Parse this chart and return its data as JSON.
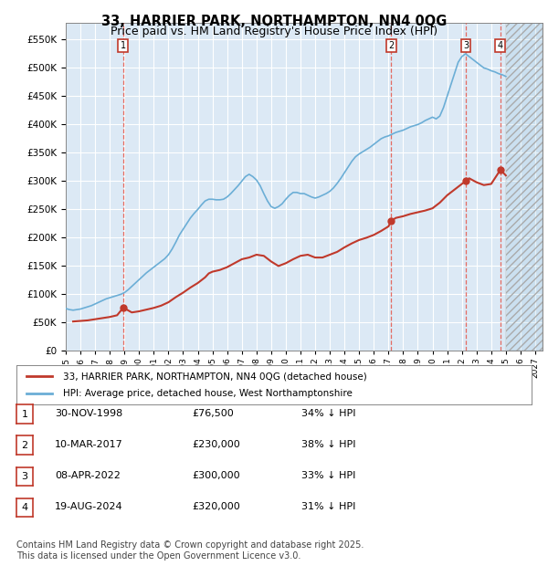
{
  "title": "33, HARRIER PARK, NORTHAMPTON, NN4 0QG",
  "subtitle": "Price paid vs. HM Land Registry's House Price Index (HPI)",
  "title_fontsize": 11,
  "subtitle_fontsize": 9.5,
  "ylim": [
    0,
    580000
  ],
  "yticks": [
    0,
    50000,
    100000,
    150000,
    200000,
    250000,
    300000,
    350000,
    400000,
    450000,
    500000,
    550000
  ],
  "ytick_labels": [
    "£0",
    "£50K",
    "£100K",
    "£150K",
    "£200K",
    "£250K",
    "£300K",
    "£350K",
    "£400K",
    "£450K",
    "£500K",
    "£550K"
  ],
  "xlim_start": 1995.0,
  "xlim_end": 2027.5,
  "background_color": "#dce9f5",
  "plot_bg_color": "#dce9f5",
  "grid_color": "#ffffff",
  "hpi_line_color": "#6baed6",
  "price_line_color": "#c0392b",
  "transaction_marker_color": "#c0392b",
  "vertical_line_color": "#e74c3c",
  "transactions": [
    {
      "num": 1,
      "date": "30-NOV-1998",
      "year": 1998.92,
      "price": 76500,
      "label": "30-NOV-1998",
      "price_str": "£76,500",
      "pct": "34% ↓ HPI"
    },
    {
      "num": 2,
      "date": "10-MAR-2017",
      "year": 2017.19,
      "price": 230000,
      "label": "10-MAR-2017",
      "price_str": "£230,000",
      "pct": "38% ↓ HPI"
    },
    {
      "num": 3,
      "date": "08-APR-2022",
      "year": 2022.27,
      "price": 300000,
      "label": "08-APR-2022",
      "price_str": "£300,000",
      "pct": "33% ↓ HPI"
    },
    {
      "num": 4,
      "date": "19-AUG-2024",
      "year": 2024.63,
      "price": 320000,
      "label": "19-AUG-2024",
      "price_str": "£320,000",
      "pct": "31% ↓ HPI"
    }
  ],
  "hpi_data_x": [
    1995.0,
    1995.25,
    1995.5,
    1995.75,
    1996.0,
    1996.25,
    1996.5,
    1996.75,
    1997.0,
    1997.25,
    1997.5,
    1997.75,
    1998.0,
    1998.25,
    1998.5,
    1998.75,
    1999.0,
    1999.25,
    1999.5,
    1999.75,
    2000.0,
    2000.25,
    2000.5,
    2000.75,
    2001.0,
    2001.25,
    2001.5,
    2001.75,
    2002.0,
    2002.25,
    2002.5,
    2002.75,
    2003.0,
    2003.25,
    2003.5,
    2003.75,
    2004.0,
    2004.25,
    2004.5,
    2004.75,
    2005.0,
    2005.25,
    2005.5,
    2005.75,
    2006.0,
    2006.25,
    2006.5,
    2006.75,
    2007.0,
    2007.25,
    2007.5,
    2007.75,
    2008.0,
    2008.25,
    2008.5,
    2008.75,
    2009.0,
    2009.25,
    2009.5,
    2009.75,
    2010.0,
    2010.25,
    2010.5,
    2010.75,
    2011.0,
    2011.25,
    2011.5,
    2011.75,
    2012.0,
    2012.25,
    2012.5,
    2012.75,
    2013.0,
    2013.25,
    2013.5,
    2013.75,
    2014.0,
    2014.25,
    2014.5,
    2014.75,
    2015.0,
    2015.25,
    2015.5,
    2015.75,
    2016.0,
    2016.25,
    2016.5,
    2016.75,
    2017.0,
    2017.25,
    2017.5,
    2017.75,
    2018.0,
    2018.25,
    2018.5,
    2018.75,
    2019.0,
    2019.25,
    2019.5,
    2019.75,
    2020.0,
    2020.25,
    2020.5,
    2020.75,
    2021.0,
    2021.25,
    2021.5,
    2021.75,
    2022.0,
    2022.25,
    2022.5,
    2022.75,
    2023.0,
    2023.25,
    2023.5,
    2023.75,
    2024.0,
    2024.25,
    2024.5,
    2024.75,
    2025.0
  ],
  "hpi_data_y": [
    75000,
    73000,
    72000,
    73000,
    74000,
    76000,
    78000,
    80000,
    83000,
    86000,
    89000,
    92000,
    94000,
    96000,
    98000,
    100000,
    103000,
    108000,
    114000,
    120000,
    126000,
    132000,
    138000,
    143000,
    148000,
    153000,
    158000,
    163000,
    170000,
    180000,
    192000,
    205000,
    215000,
    225000,
    235000,
    243000,
    250000,
    258000,
    265000,
    268000,
    268000,
    267000,
    267000,
    268000,
    272000,
    278000,
    285000,
    292000,
    300000,
    308000,
    312000,
    308000,
    302000,
    292000,
    278000,
    265000,
    255000,
    252000,
    255000,
    260000,
    268000,
    275000,
    280000,
    280000,
    278000,
    278000,
    275000,
    272000,
    270000,
    272000,
    275000,
    278000,
    282000,
    288000,
    296000,
    305000,
    315000,
    325000,
    335000,
    343000,
    348000,
    352000,
    356000,
    360000,
    365000,
    370000,
    375000,
    378000,
    380000,
    383000,
    386000,
    388000,
    390000,
    393000,
    396000,
    398000,
    400000,
    403000,
    407000,
    410000,
    413000,
    410000,
    415000,
    430000,
    450000,
    470000,
    490000,
    510000,
    520000,
    525000,
    520000,
    515000,
    510000,
    505000,
    500000,
    498000,
    495000,
    493000,
    490000,
    488000,
    485000
  ],
  "price_data_x": [
    1995.5,
    1996.0,
    1996.5,
    1997.0,
    1997.5,
    1998.0,
    1998.5,
    1998.92,
    1999.5,
    2000.0,
    2000.5,
    2001.0,
    2001.5,
    2002.0,
    2002.5,
    2003.0,
    2003.5,
    2004.0,
    2004.5,
    2004.75,
    2005.0,
    2005.5,
    2006.0,
    2006.5,
    2007.0,
    2007.5,
    2008.0,
    2008.5,
    2009.0,
    2009.5,
    2010.0,
    2010.5,
    2011.0,
    2011.5,
    2012.0,
    2012.5,
    2013.0,
    2013.5,
    2014.0,
    2014.5,
    2015.0,
    2015.5,
    2016.0,
    2016.5,
    2017.0,
    2017.19,
    2017.5,
    2018.0,
    2018.5,
    2019.0,
    2019.5,
    2020.0,
    2020.5,
    2021.0,
    2021.5,
    2022.0,
    2022.27,
    2022.5,
    2023.0,
    2023.5,
    2024.0,
    2024.63,
    2025.0
  ],
  "price_data_y": [
    52000,
    53000,
    54000,
    56000,
    58000,
    60000,
    63000,
    76500,
    68000,
    70000,
    73000,
    76000,
    80000,
    86000,
    95000,
    103000,
    112000,
    120000,
    130000,
    137000,
    140000,
    143000,
    148000,
    155000,
    162000,
    165000,
    170000,
    168000,
    158000,
    150000,
    155000,
    162000,
    168000,
    170000,
    165000,
    165000,
    170000,
    175000,
    183000,
    190000,
    196000,
    200000,
    205000,
    212000,
    220000,
    230000,
    235000,
    238000,
    242000,
    245000,
    248000,
    252000,
    262000,
    275000,
    285000,
    295000,
    300000,
    305000,
    298000,
    293000,
    295000,
    320000,
    310000
  ],
  "future_start": 2025.0,
  "future_end": 2027.5,
  "legend_line1": "33, HARRIER PARK, NORTHAMPTON, NN4 0QG (detached house)",
  "legend_line2": "HPI: Average price, detached house, West Northamptonshire",
  "footer": "Contains HM Land Registry data © Crown copyright and database right 2025.\nThis data is licensed under the Open Government Licence v3.0.",
  "footer_fontsize": 7
}
